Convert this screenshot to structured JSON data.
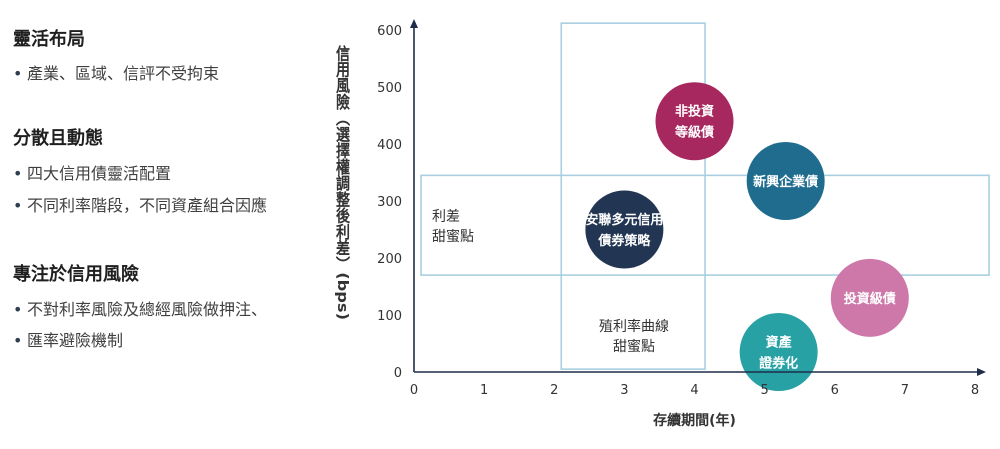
{
  "left_panel": {
    "sections": [
      {
        "heading": "靈活布局",
        "bullets": [
          "產業、區域、信評不受拘束"
        ]
      },
      {
        "heading": "分散且動態",
        "bullets": [
          "四大信用債靈活配置",
          "不同利率階段，不同資產組合因應"
        ]
      },
      {
        "heading": "專注於信用風險",
        "bullets": [
          "不對利率風險及總經風險做押注、",
          "匯率避險機制"
        ]
      }
    ],
    "bullet_char": "•"
  },
  "chart_data": {
    "type": "scatter",
    "xlabel": "存續期間(年)",
    "ylabel": "信用風險（選擇權調整後利差）(bps)",
    "xlim": [
      0,
      8
    ],
    "ylim": [
      0,
      600
    ],
    "xticks": [
      0,
      1,
      2,
      3,
      4,
      5,
      6,
      7,
      8
    ],
    "yticks": [
      0,
      100,
      200,
      300,
      400,
      500,
      600
    ],
    "grid": false,
    "sweet_spots": [
      {
        "label_lines": [
          "利差",
          "甜蜜點"
        ],
        "x_range": [
          0.1,
          8.2
        ],
        "y_range": [
          170,
          345
        ]
      },
      {
        "label_lines": [
          "殖利率曲線",
          "甜蜜點"
        ],
        "x_range": [
          2.1,
          4.15
        ],
        "y_range": [
          5,
          612
        ]
      }
    ],
    "bubbles": [
      {
        "label_lines": [
          "非投資",
          "等級債"
        ],
        "x": 4.0,
        "y": 440,
        "color": "#a7285f"
      },
      {
        "label_lines": [
          "新興企業債"
        ],
        "x": 5.3,
        "y": 335,
        "color": "#1f6c8f"
      },
      {
        "label_lines": [
          "安聯多元信用",
          "債券策略"
        ],
        "x": 3.0,
        "y": 250,
        "color": "#223553"
      },
      {
        "label_lines": [
          "投資級債"
        ],
        "x": 6.5,
        "y": 130,
        "color": "#cd78a8"
      },
      {
        "label_lines": [
          "資產",
          "證券化"
        ],
        "x": 5.2,
        "y": 35,
        "color": "#27a1a4"
      }
    ],
    "colors": {
      "axis": "#1f2d4a",
      "box": "#a9cfe0",
      "tick_text": "#333333"
    }
  }
}
